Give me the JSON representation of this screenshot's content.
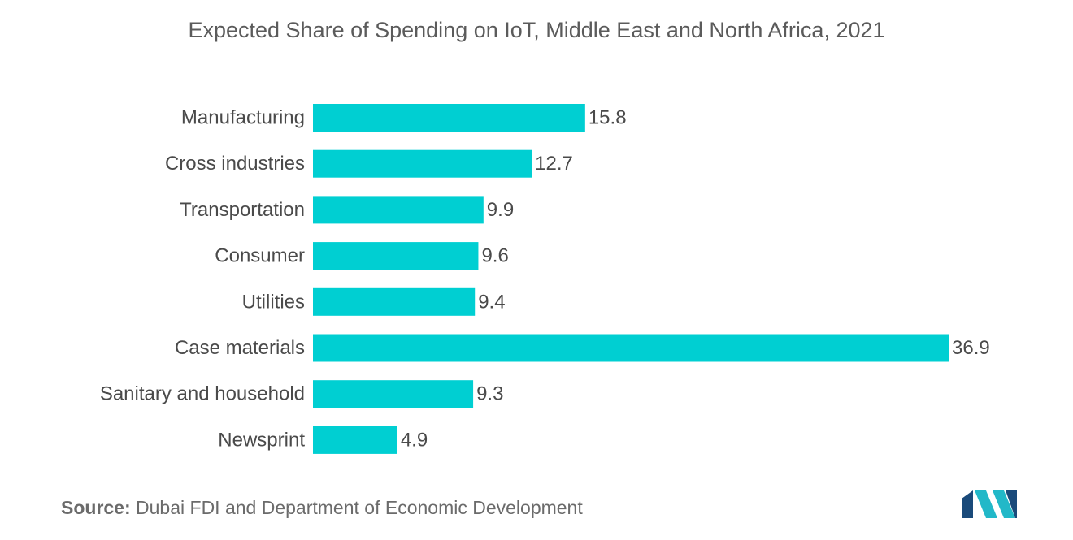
{
  "chart_data": {
    "type": "bar",
    "orientation": "horizontal",
    "title": "Expected Share of Spending on IoT, Middle East and North Africa, 2021",
    "categories": [
      "Manufacturing",
      "Cross industries",
      "Transportation",
      "Consumer",
      "Utilities",
      "Case materials",
      "Sanitary and household",
      "Newsprint"
    ],
    "values": [
      15.8,
      12.7,
      9.9,
      9.6,
      9.4,
      36.9,
      9.3,
      4.9
    ],
    "value_labels": [
      "15.8",
      "12.7",
      "9.9",
      "9.6",
      "9.4",
      "36.9",
      "9.3",
      "4.9"
    ],
    "xlabel": "",
    "ylabel": "",
    "xlim": [
      0,
      36.9
    ],
    "grid": false,
    "legend": "none",
    "bar_color": "#00cfd2"
  },
  "footer": {
    "source_label": "Source:",
    "source_text": "Dubai FDI and Department of Economic Development"
  },
  "logo": {
    "icon": "mordor-intelligence-logo",
    "colors": [
      "#1a4a7a",
      "#22b8c8"
    ]
  }
}
